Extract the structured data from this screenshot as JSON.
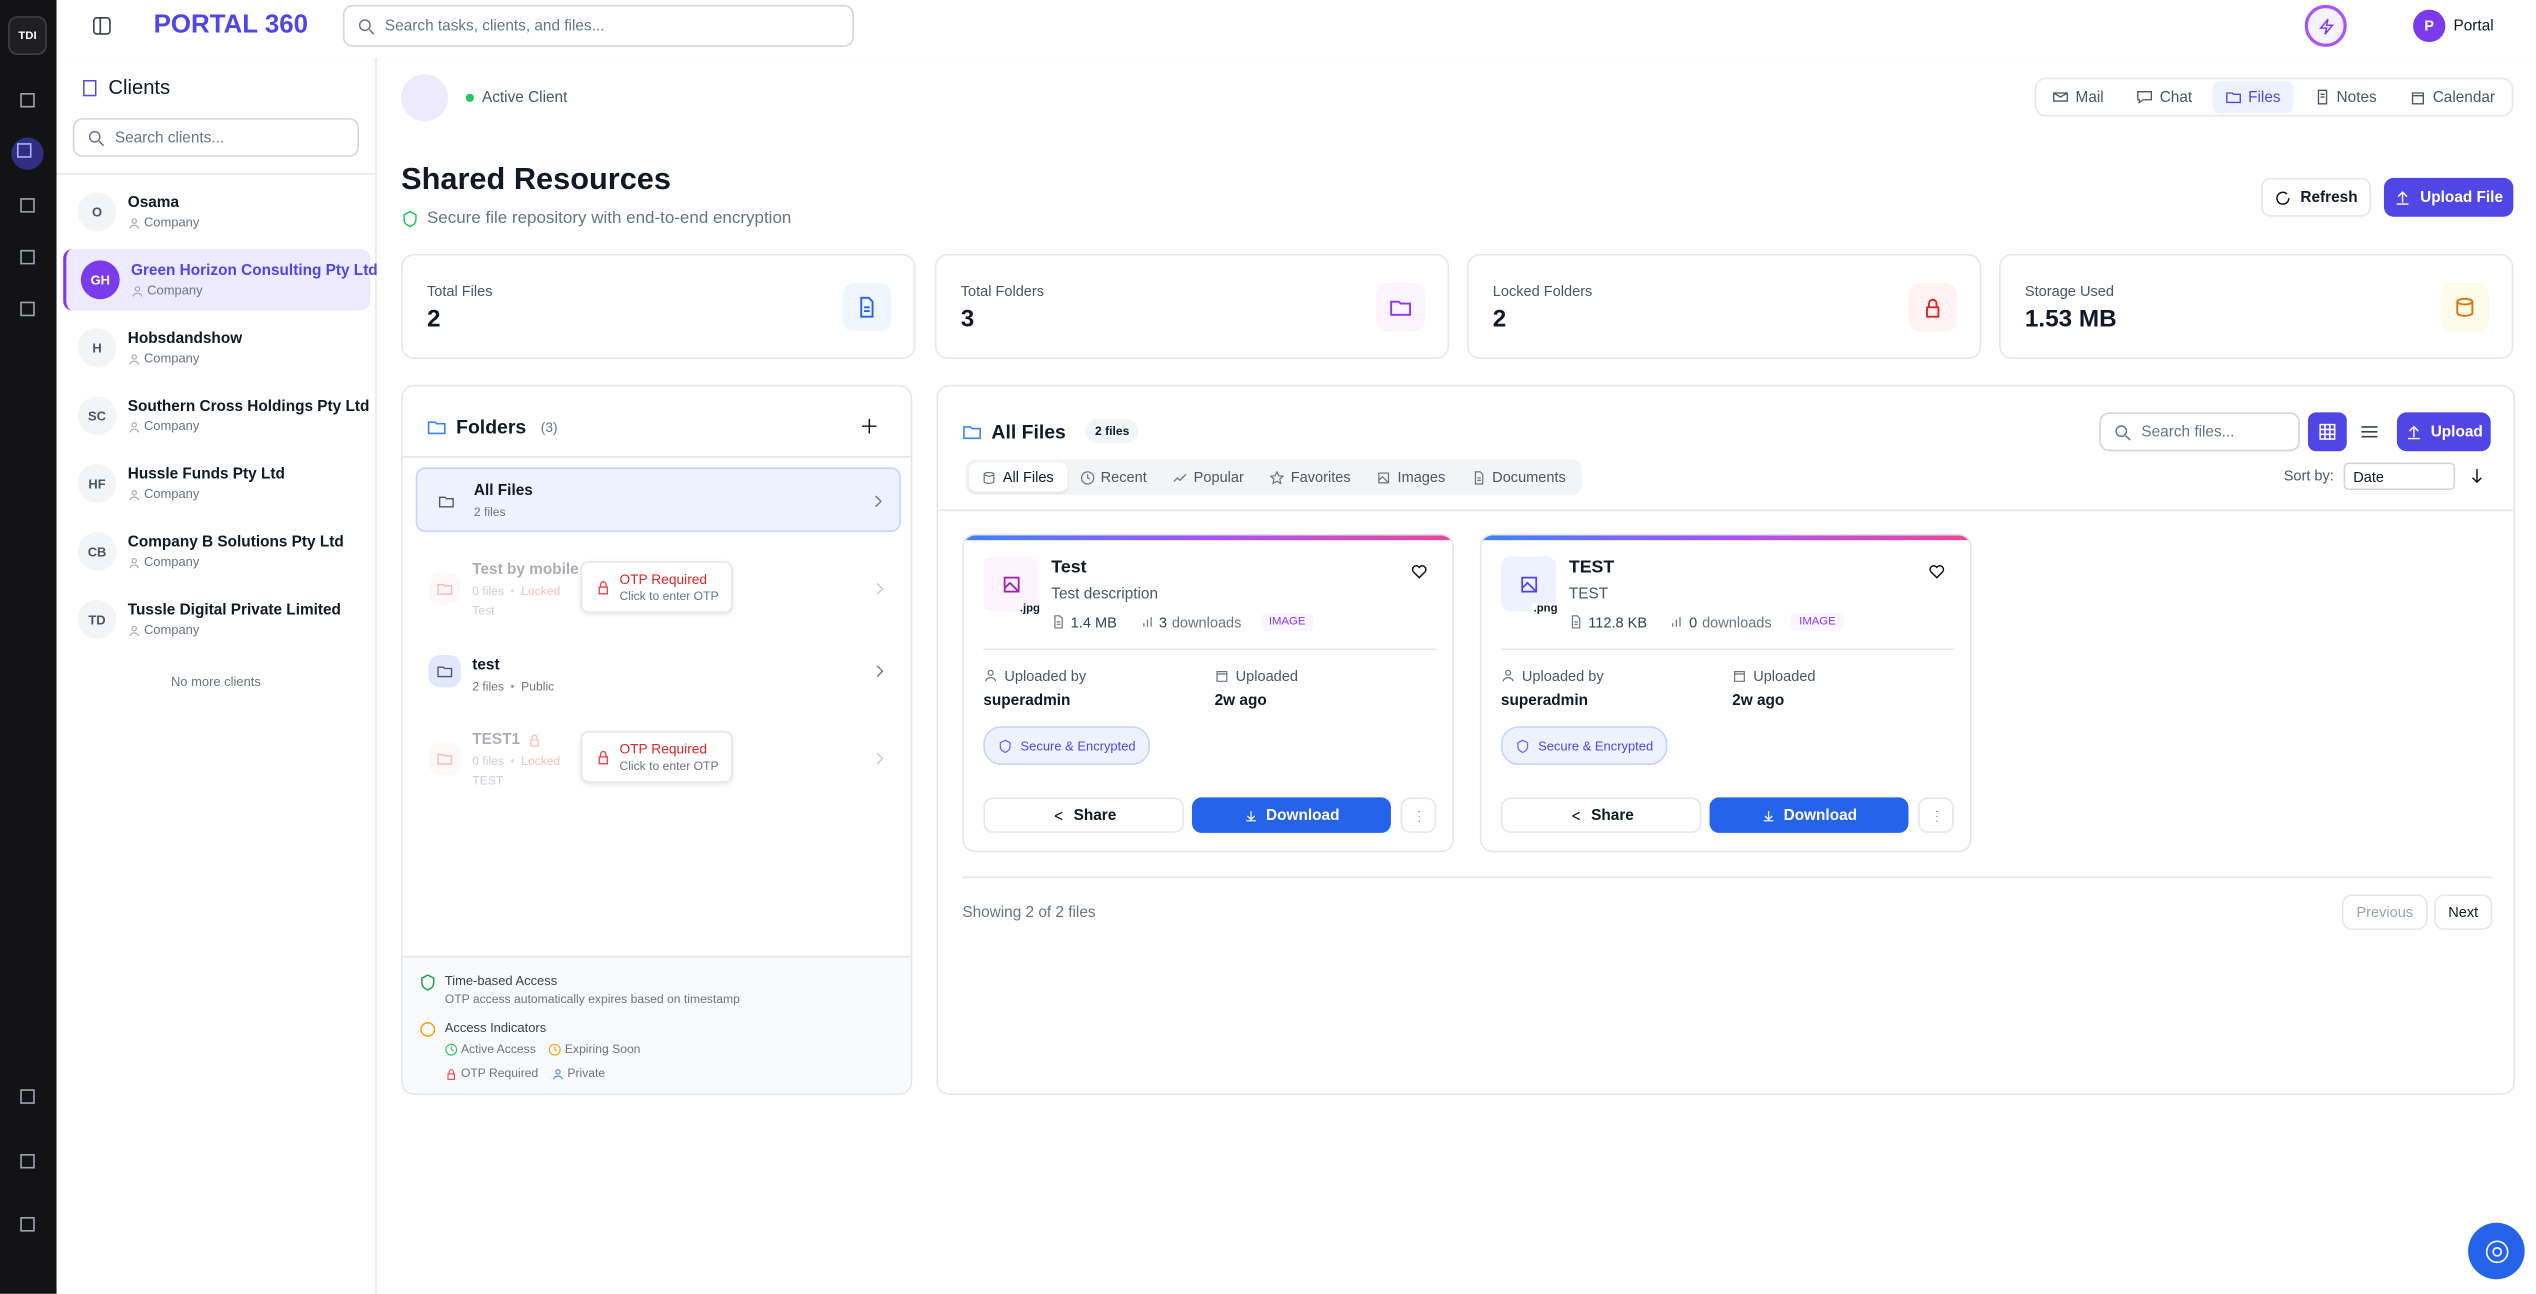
{
  "app": {
    "logo": "TDI",
    "title": "PORTAL 360",
    "search_placeholder": "Search tasks, clients, and files...",
    "user_initial": "P",
    "user_name": "Portal"
  },
  "clients_panel": {
    "title": "Clients",
    "search_placeholder": "Search clients...",
    "footer": "No more clients",
    "clients": [
      {
        "initials": "O",
        "name": "Osama",
        "type": "Company"
      },
      {
        "initials": "GH",
        "name": "Green Horizon Consulting Pty Ltd",
        "type": "Company"
      },
      {
        "initials": "H",
        "name": "Hobsdandshow",
        "type": "Company"
      },
      {
        "initials": "SC",
        "name": "Southern Cross Holdings Pty Ltd",
        "type": "Company"
      },
      {
        "initials": "HF",
        "name": "Hussle Funds Pty Ltd",
        "type": "Company"
      },
      {
        "initials": "CB",
        "name": "Company B Solutions Pty Ltd",
        "type": "Company"
      },
      {
        "initials": "TD",
        "name": "Tussle Digital Private Limited",
        "type": "Company"
      }
    ]
  },
  "client_header": {
    "status": "Active Client",
    "tabs": [
      "Mail",
      "Chat",
      "Files",
      "Notes",
      "Calendar"
    ]
  },
  "page": {
    "title": "Shared Resources",
    "subtitle": "Secure file repository with end-to-end encryption",
    "refresh": "Refresh",
    "upload_file": "Upload File"
  },
  "stats": [
    {
      "label": "Total Files",
      "value": 2
    },
    {
      "label": "Total Folders",
      "value": 3
    },
    {
      "label": "Locked Folders",
      "value": 2
    },
    {
      "label": "Storage Used",
      "value": "1.53 MB"
    }
  ],
  "folders": {
    "title": "Folders",
    "count": "(3)",
    "items": [
      {
        "name": "All Files",
        "files": "2 files"
      },
      {
        "name": "Test by mobile d",
        "files": "0 files",
        "access": "Locked",
        "description": "Test",
        "otp_title": "OTP Required",
        "otp_hint": "Click to enter OTP"
      },
      {
        "name": "test",
        "files": "2 files",
        "access": "Public"
      },
      {
        "name": "TEST1",
        "files": "0 files",
        "access": "Locked",
        "description": "TEST",
        "otp_title": "OTP Required",
        "otp_hint": "Click to enter OTP"
      }
    ],
    "legend": {
      "time_title": "Time-based Access",
      "time_text": "OTP access automatically expires based on timestamp",
      "indicators_title": "Access Indicators",
      "indicators": [
        "Active Access",
        "Expiring Soon",
        "OTP Required",
        "Private"
      ]
    }
  },
  "files": {
    "title": "All Files",
    "count": "2 files",
    "search_placeholder": "Search files...",
    "upload": "Upload",
    "filters": [
      "All Files",
      "Recent",
      "Popular",
      "Favorites",
      "Images",
      "Documents"
    ],
    "sort_label": "Sort by:",
    "sort_value": "Date",
    "cards": [
      {
        "ext": ".jpg",
        "name": "Test",
        "description": "Test description",
        "size": "1.4 MB",
        "downloads": 3,
        "downloads_label": "downloads",
        "kind": "IMAGE",
        "uploaded_by_label": "Uploaded by",
        "uploaded_by": "superadmin",
        "uploaded_label": "Uploaded",
        "uploaded": "2w ago",
        "badge": "Secure & Encrypted",
        "share": "Share",
        "download": "Download"
      },
      {
        "ext": ".png",
        "name": "TEST",
        "description": "TEST",
        "size": "112.8 KB",
        "downloads": 0,
        "downloads_label": "downloads",
        "kind": "IMAGE",
        "uploaded_by_label": "Uploaded by",
        "uploaded_by": "superadmin",
        "uploaded_label": "Uploaded",
        "uploaded": "2w ago",
        "badge": "Secure & Encrypted",
        "share": "Share",
        "download": "Download"
      }
    ],
    "pagination": {
      "summary": "Showing 2 of 2 files",
      "previous": "Previous",
      "next": "Next"
    }
  }
}
